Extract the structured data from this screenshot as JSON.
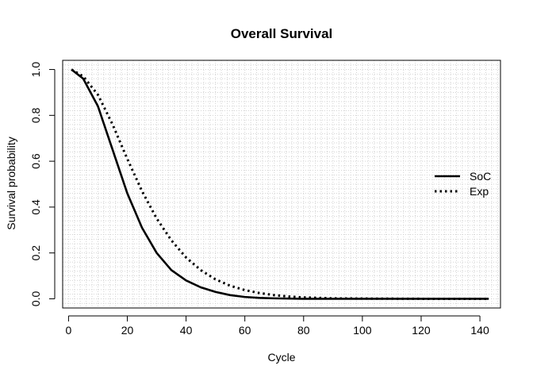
{
  "chart_data": {
    "type": "line",
    "title": "Overall Survival",
    "xlabel": "Cycle",
    "ylabel": "Survival probability",
    "xlim": [
      -2,
      147
    ],
    "ylim": [
      -0.04,
      1.04
    ],
    "xticks": [
      0,
      20,
      40,
      60,
      80,
      100,
      120,
      140
    ],
    "yticks": [
      0.0,
      0.2,
      0.4,
      0.6,
      0.8,
      1.0
    ],
    "ytick_labels": [
      "0.0",
      "0.2",
      "0.4",
      "0.6",
      "0.8",
      "1.0"
    ],
    "grid": true,
    "legend_position": "right",
    "series": [
      {
        "name": "SoC",
        "line_style": "solid",
        "color": "#000000",
        "x": [
          1,
          5,
          10,
          15,
          20,
          25,
          30,
          35,
          40,
          45,
          50,
          55,
          60,
          65,
          70,
          80,
          100,
          120,
          143
        ],
        "y": [
          1.0,
          0.96,
          0.84,
          0.65,
          0.46,
          0.31,
          0.2,
          0.125,
          0.08,
          0.05,
          0.03,
          0.016,
          0.008,
          0.004,
          0.002,
          0.0,
          0.0,
          0.0,
          0.0
        ]
      },
      {
        "name": "Exp",
        "line_style": "dotted",
        "color": "#000000",
        "x": [
          1,
          5,
          10,
          15,
          20,
          25,
          30,
          35,
          40,
          45,
          50,
          55,
          60,
          65,
          70,
          75,
          80,
          90,
          100,
          120,
          143
        ],
        "y": [
          1.0,
          0.97,
          0.89,
          0.76,
          0.61,
          0.47,
          0.35,
          0.255,
          0.18,
          0.125,
          0.085,
          0.057,
          0.038,
          0.025,
          0.016,
          0.01,
          0.006,
          0.002,
          0.001,
          0.0,
          0.0
        ]
      }
    ]
  }
}
